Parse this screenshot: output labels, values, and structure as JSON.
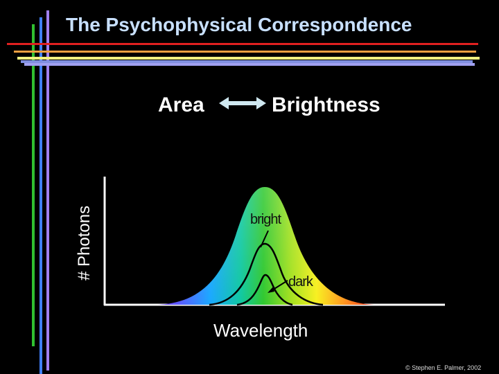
{
  "slide": {
    "title": "The Psychophysical Correspondence",
    "left_term": "Area",
    "right_term": "Brightness",
    "y_axis_label": "# Photons",
    "x_axis_label": "Wavelength",
    "curve_label_bright": "bright",
    "curve_label_dark": "dark",
    "copyright": "© Stephen E. Palmer, 2002"
  },
  "colors": {
    "background": "#000000",
    "title": "#c8e0ff",
    "arrow": "#cfe8f0",
    "axes": "#ffffff",
    "decor_red": "#e02020",
    "decor_orange": "#f0a040",
    "decor_yellow": "#f0f080",
    "decor_green": "#30c030",
    "decor_blue": "#4080ff",
    "decor_violet": "#a0a0f0"
  },
  "icons": [
    "double-headed-arrow-icon"
  ]
}
